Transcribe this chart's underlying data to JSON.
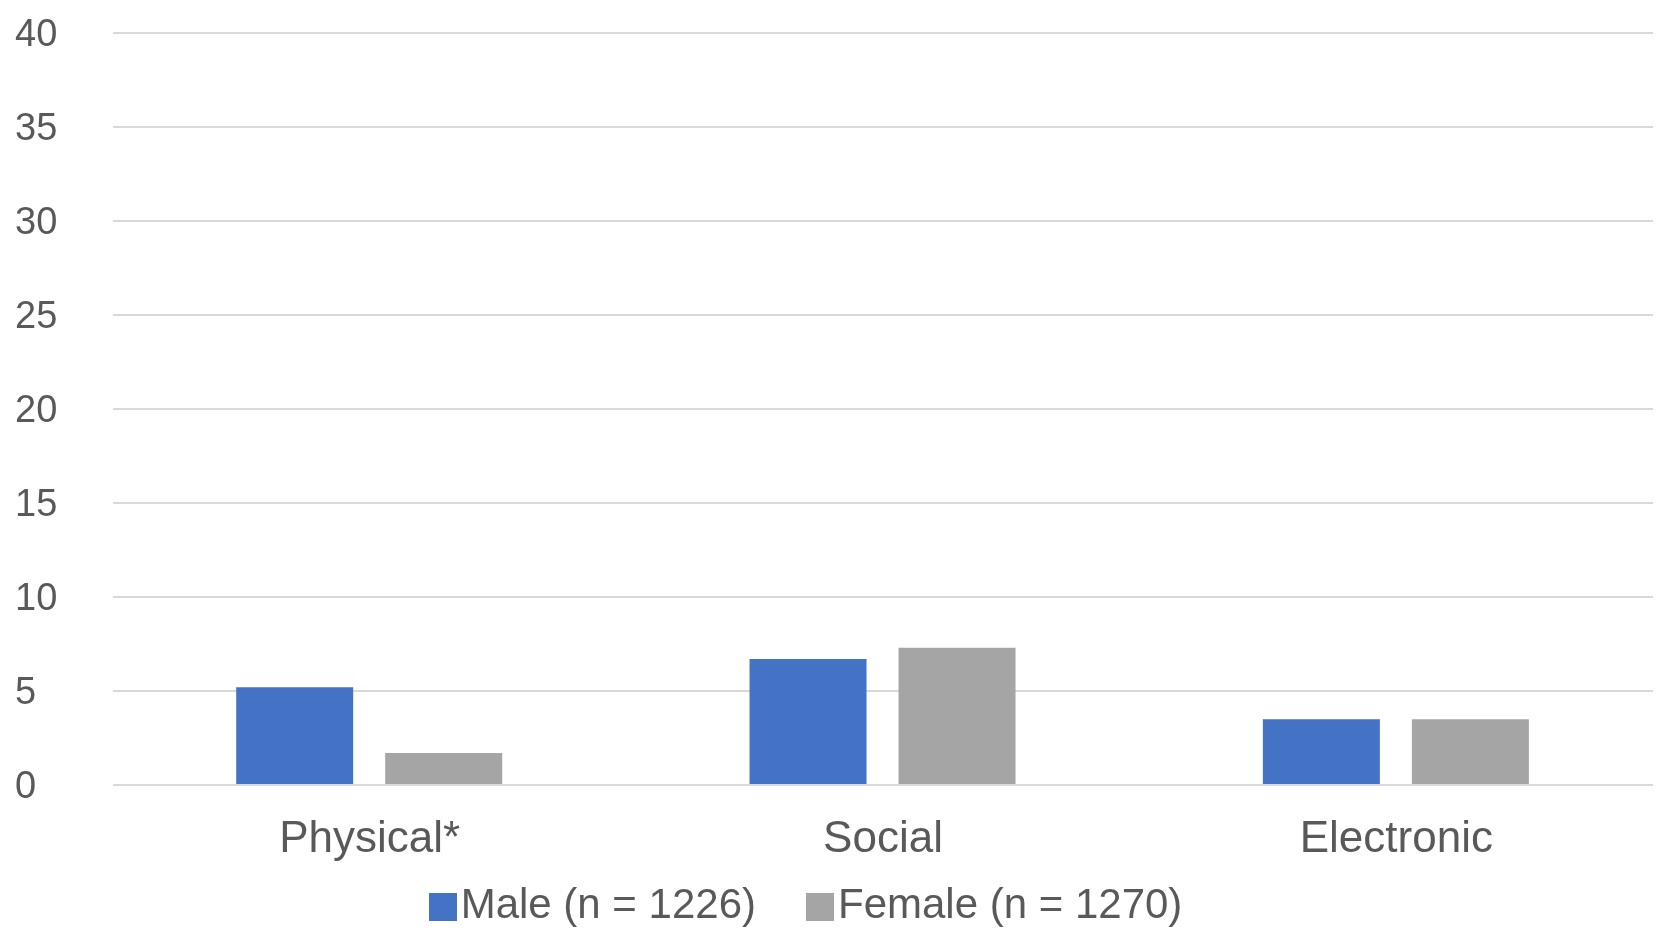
{
  "chart_data": {
    "type": "bar",
    "categories": [
      "Physical*",
      "Social",
      "Electronic"
    ],
    "series": [
      {
        "name": "Male (n = 1226)",
        "color": "#4472c4",
        "values": [
          5.2,
          6.7,
          3.5
        ]
      },
      {
        "name": "Female (n = 1270)",
        "color": "#a5a5a5",
        "values": [
          1.7,
          7.3,
          3.5
        ]
      }
    ],
    "ylim": [
      0,
      40
    ],
    "yticks": [
      0,
      5,
      10,
      15,
      20,
      25,
      30,
      35,
      40
    ],
    "grid": "y",
    "legend": "bottom"
  }
}
